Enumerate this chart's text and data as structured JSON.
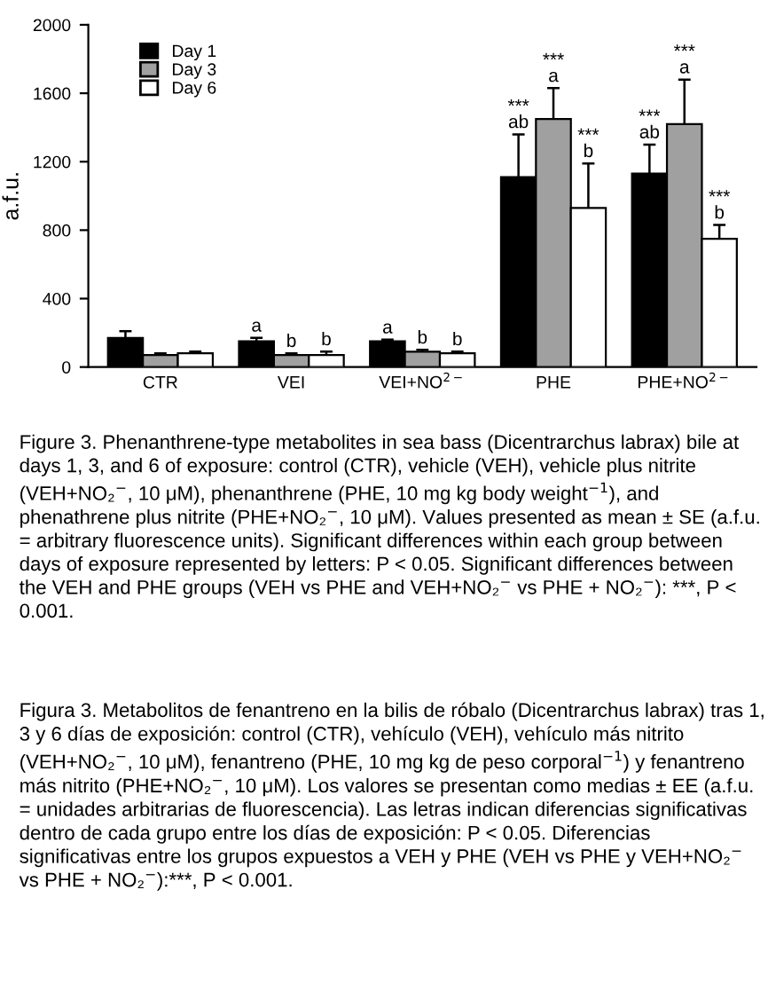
{
  "chart_data": {
    "type": "bar",
    "ylabel": "a.f.u.",
    "categories": [
      "CTR",
      "VEI",
      "VEI+NO$^{2−}$",
      "PHE",
      "PHE+NO$^{2−}$"
    ],
    "series": [
      {
        "name": "Day 1",
        "color": "#000000",
        "values": [
          170,
          150,
          150,
          1110,
          1130
        ],
        "errors": [
          40,
          20,
          10,
          250,
          170
        ],
        "value_labels": [
          null,
          "a",
          "a",
          "***\nab",
          "***\nab"
        ]
      },
      {
        "name": "Day 3",
        "color": "#a0a0a0",
        "values": [
          70,
          70,
          90,
          1450,
          1420
        ],
        "errors": [
          10,
          10,
          10,
          180,
          260
        ],
        "value_labels": [
          null,
          "b",
          "b",
          "***\na",
          "***\na"
        ]
      },
      {
        "name": "Day 6",
        "color": "#ffffff",
        "values": [
          80,
          70,
          80,
          930,
          750
        ],
        "errors": [
          10,
          20,
          10,
          260,
          80
        ],
        "value_labels": [
          null,
          "b",
          "b",
          "***\nb",
          "***\nb"
        ]
      }
    ],
    "ylim": [
      0,
      2000
    ],
    "yticks": [
      0,
      400,
      800,
      1200,
      1600,
      2000
    ],
    "grid": false,
    "legend": "top left",
    "annotations": [
      "Figure 3. Phenanthrene-type metabolites in sea bass (Dicentrarchus labrax) bile at days 1, 3, and 6 of exposure: control (CTR), vehicle (VEH), vehicle plus nitrite (VEH+NO₂$^{−}$, 10 μM), phenanthrene (PHE, 10 mg kg body weight$^{−1}$), and phenathrene plus nitrite (PHE+NO₂$^{−}$, 10 μM). Values presented as mean ± SE (a.f.u. = arbitrary fluorescence units). Significant differences within each group between days of exposure represented by letters: P < 0.05. Significant differences between the VEH and PHE groups (VEH vs PHE and VEH+NO₂$^{−}$ vs PHE + NO₂$^{−}$): ***, P < 0.001.",
      "Figura 3. Metabolitos de fenantreno en la bilis de róbalo (Dicentrarchus labrax) tras 1, 3 y 6 días de exposición: control (CTR), vehículo (VEH), vehículo más nitrito (VEH+NO₂$^{−}$, 10 μM), fenantreno (PHE, 10 mg kg de peso corporal$^{−1}$) y fenantreno más nitrito (PHE+NO₂$^{−}$, 10 μM). Los valores se presentan como medias ± EE (a.f.u. = unidades arbitrarias de fluorescencia). Las letras indican diferencias significativas dentro de cada grupo entre los días de exposición: P < 0.05. Diferencias significativas entre los grupos expuestos a VEH y PHE (VEH vs PHE y VEH+NO₂$^{−}$ vs PHE + NO₂$^{−}$):***, P < 0.001."
    ]
  }
}
